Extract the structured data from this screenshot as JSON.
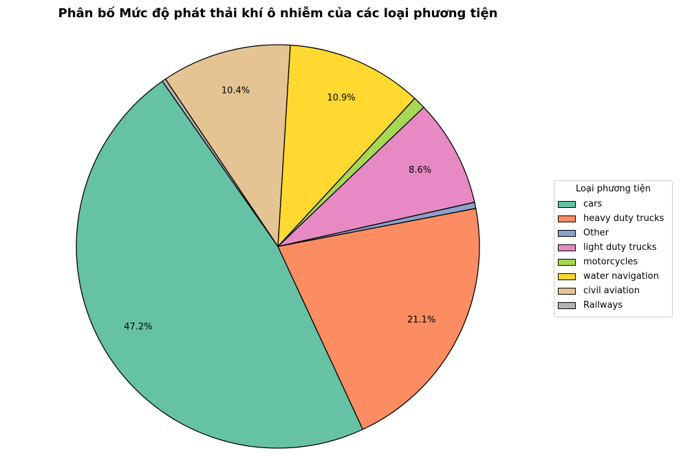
{
  "chart_data": {
    "type": "pie",
    "title": "Phân bố Mức độ phát thải khí ô nhiễm của các loại phương tiện",
    "legend_title": "Loại phương tiện",
    "legend_position": "center-right",
    "start_angle_deg": 125,
    "direction": "counterclockwise",
    "slices": [
      {
        "label": "cars",
        "value": 47.2,
        "pct_label": "47.2%",
        "color": "#66c2a5"
      },
      {
        "label": "heavy duty trucks",
        "value": 21.1,
        "pct_label": "21.1%",
        "color": "#fc8d62"
      },
      {
        "label": "Other",
        "value": 0.5,
        "pct_label": "",
        "color": "#8da0cb"
      },
      {
        "label": "light duty trucks",
        "value": 8.6,
        "pct_label": "8.6%",
        "color": "#e78ac3"
      },
      {
        "label": "motorcycles",
        "value": 1.0,
        "pct_label": "",
        "color": "#a6d854"
      },
      {
        "label": "water navigation",
        "value": 10.9,
        "pct_label": "10.9%",
        "color": "#ffd92f"
      },
      {
        "label": "civil aviation",
        "value": 10.4,
        "pct_label": "10.4%",
        "color": "#e5c494"
      },
      {
        "label": "Railways",
        "value": 0.3,
        "pct_label": "",
        "color": "#b3b3b3"
      }
    ]
  }
}
